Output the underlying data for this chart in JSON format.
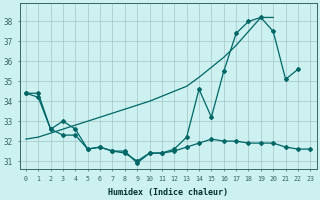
{
  "xlabel": "Humidex (Indice chaleur)",
  "bg_color": "#cdf0f0",
  "line_color": "#006666",
  "xlim": [
    -0.5,
    23.5
  ],
  "ylim": [
    30.6,
    38.9
  ],
  "yticks": [
    31,
    32,
    33,
    34,
    35,
    36,
    37,
    38
  ],
  "xticks": [
    0,
    1,
    2,
    3,
    4,
    5,
    6,
    7,
    8,
    9,
    10,
    11,
    12,
    13,
    14,
    15,
    16,
    17,
    18,
    19,
    20,
    21,
    22,
    23
  ],
  "s1_x": [
    0,
    1,
    2,
    3,
    4,
    5,
    6,
    7,
    8,
    9,
    10,
    11,
    12,
    13,
    14,
    15,
    16,
    17,
    18,
    19,
    20,
    21,
    22
  ],
  "s1_y": [
    34.4,
    34.4,
    32.6,
    32.3,
    32.3,
    31.6,
    31.7,
    31.5,
    31.5,
    30.9,
    31.4,
    31.4,
    31.6,
    32.2,
    34.6,
    33.2,
    35.5,
    37.4,
    38.0,
    38.2,
    37.5,
    35.1,
    35.6
  ],
  "s2_x": [
    0,
    1,
    2,
    3,
    4,
    5,
    6,
    7,
    8,
    9,
    10,
    11,
    12,
    13,
    14,
    15,
    16,
    17,
    18,
    19,
    20,
    21,
    22,
    23
  ],
  "s2_y": [
    34.4,
    34.2,
    32.6,
    33.0,
    32.6,
    31.6,
    31.7,
    31.5,
    31.4,
    31.0,
    31.4,
    31.4,
    31.5,
    31.7,
    31.9,
    32.1,
    32.0,
    32.0,
    31.9,
    31.9,
    31.9,
    31.7,
    31.6,
    31.6
  ],
  "s3_x": [
    0,
    1,
    2,
    3,
    4,
    5,
    6,
    7,
    8,
    9,
    10,
    11,
    12,
    13,
    14,
    15,
    16,
    17,
    18,
    19,
    20
  ],
  "s3_y": [
    32.1,
    32.2,
    32.4,
    32.6,
    32.8,
    33.0,
    33.2,
    33.4,
    33.6,
    33.8,
    34.0,
    34.25,
    34.5,
    34.75,
    35.2,
    35.7,
    36.2,
    36.8,
    37.5,
    38.2,
    38.2
  ]
}
